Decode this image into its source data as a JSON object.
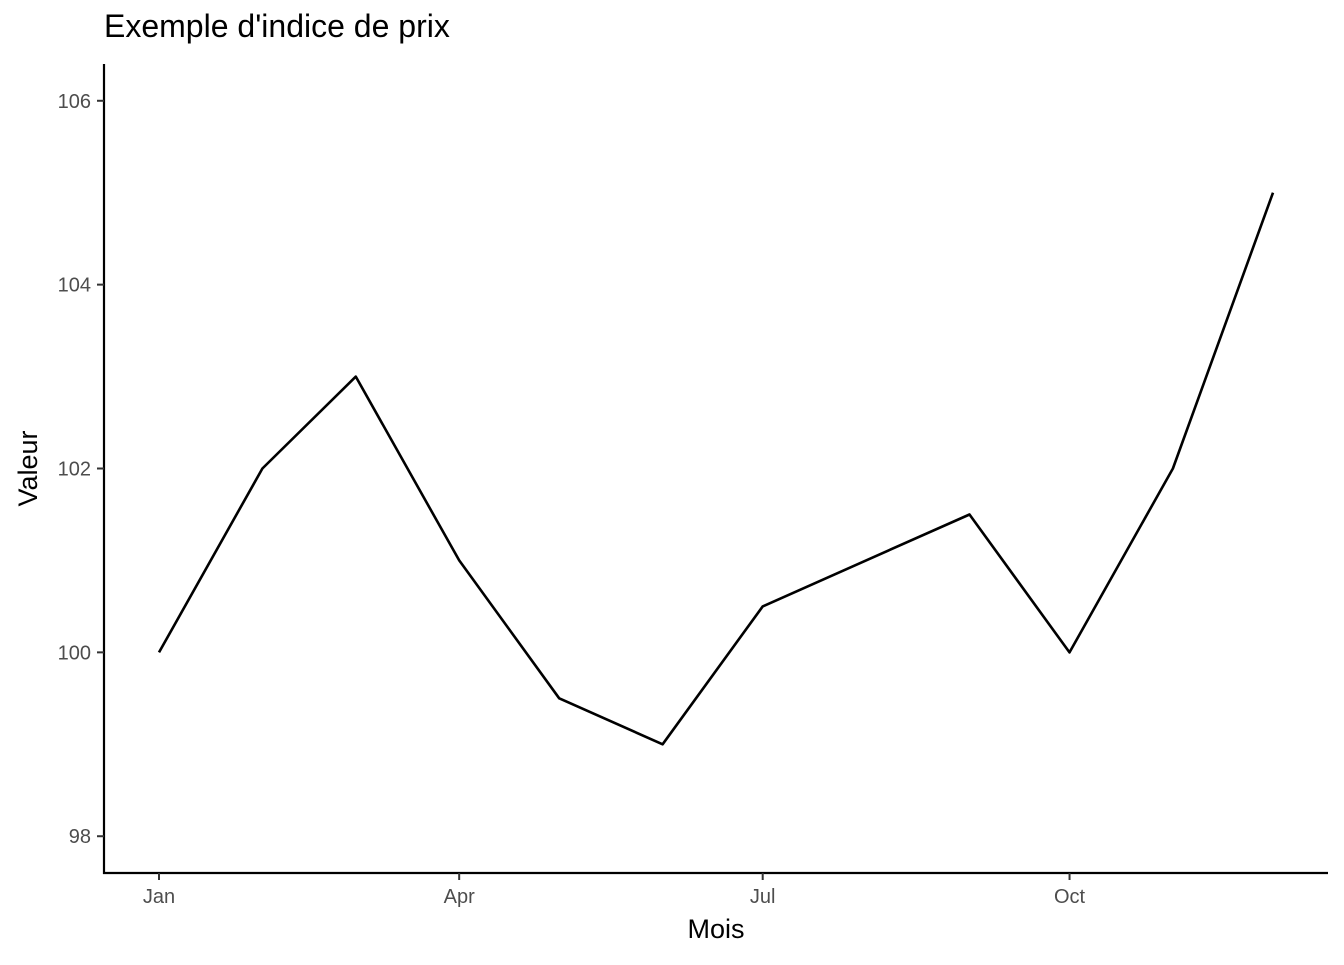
{
  "chart_data": {
    "type": "line",
    "title": "Exemple d'indice de prix",
    "xlabel": "Mois",
    "ylabel": "Valeur",
    "x": [
      "2023-01-01",
      "2023-02-01",
      "2023-03-01",
      "2023-04-01",
      "2023-05-01",
      "2023-06-01",
      "2023-07-01",
      "2023-08-01",
      "2023-09-01",
      "2023-10-01",
      "2023-11-01",
      "2023-12-01"
    ],
    "x_tick_labels": [
      "Jan",
      "Apr",
      "Jul",
      "Oct"
    ],
    "x_tick_dates": [
      "2023-01-01",
      "2023-04-01",
      "2023-07-01",
      "2023-10-01"
    ],
    "y_ticks": [
      98,
      100,
      102,
      104,
      106
    ],
    "ylim": [
      97.6,
      106.4
    ],
    "series": [
      {
        "values": [
          100,
          102,
          103,
          101,
          99.5,
          99,
          100.5,
          101,
          101.5,
          100,
          102,
          105
        ]
      }
    ],
    "grid": false,
    "line_color": "#000000"
  }
}
